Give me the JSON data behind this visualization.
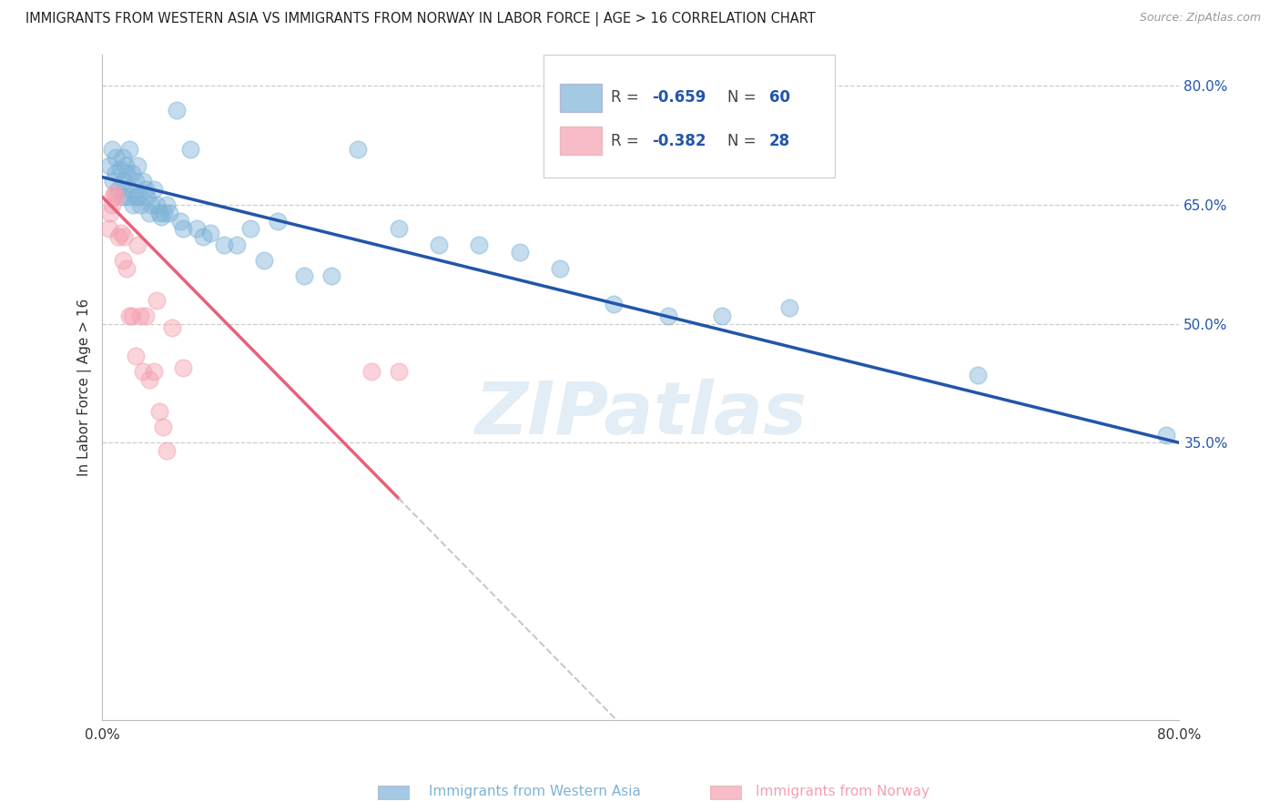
{
  "title": "IMMIGRANTS FROM WESTERN ASIA VS IMMIGRANTS FROM NORWAY IN LABOR FORCE | AGE > 16 CORRELATION CHART",
  "source": "Source: ZipAtlas.com",
  "xlabel_blue": "Immigrants from Western Asia",
  "xlabel_pink": "Immigrants from Norway",
  "ylabel": "In Labor Force | Age > 16",
  "xmin": 0.0,
  "xmax": 0.8,
  "ymin": 0.0,
  "ymax": 0.84,
  "right_yticks": [
    0.35,
    0.5,
    0.65,
    0.8
  ],
  "right_yticklabels": [
    "35.0%",
    "50.0%",
    "65.0%",
    "80.0%"
  ],
  "blue_color": "#7EB3D8",
  "pink_color": "#F4A0B0",
  "blue_line_color": "#2255AA",
  "pink_line_color": "#E8607A",
  "R_blue": -0.659,
  "N_blue": 60,
  "R_pink": -0.382,
  "N_pink": 28,
  "legend_N_color": "#3366CC",
  "watermark": "ZIPatlas",
  "blue_points_x": [
    0.005,
    0.007,
    0.008,
    0.01,
    0.01,
    0.012,
    0.013,
    0.015,
    0.015,
    0.016,
    0.017,
    0.018,
    0.019,
    0.02,
    0.02,
    0.022,
    0.023,
    0.025,
    0.025,
    0.026,
    0.027,
    0.028,
    0.03,
    0.032,
    0.033,
    0.035,
    0.036,
    0.038,
    0.04,
    0.042,
    0.044,
    0.046,
    0.048,
    0.05,
    0.055,
    0.058,
    0.06,
    0.065,
    0.07,
    0.075,
    0.08,
    0.09,
    0.1,
    0.11,
    0.12,
    0.13,
    0.15,
    0.17,
    0.19,
    0.22,
    0.25,
    0.28,
    0.31,
    0.34,
    0.38,
    0.42,
    0.46,
    0.51,
    0.65,
    0.79
  ],
  "blue_points_y": [
    0.7,
    0.72,
    0.68,
    0.71,
    0.69,
    0.67,
    0.695,
    0.71,
    0.66,
    0.68,
    0.7,
    0.69,
    0.66,
    0.72,
    0.67,
    0.69,
    0.65,
    0.68,
    0.66,
    0.7,
    0.66,
    0.65,
    0.68,
    0.67,
    0.66,
    0.64,
    0.65,
    0.67,
    0.65,
    0.64,
    0.635,
    0.64,
    0.65,
    0.64,
    0.77,
    0.63,
    0.62,
    0.72,
    0.62,
    0.61,
    0.615,
    0.6,
    0.6,
    0.62,
    0.58,
    0.63,
    0.56,
    0.56,
    0.72,
    0.62,
    0.6,
    0.6,
    0.59,
    0.57,
    0.525,
    0.51,
    0.51,
    0.52,
    0.435,
    0.36
  ],
  "pink_points_x": [
    0.005,
    0.006,
    0.007,
    0.008,
    0.009,
    0.01,
    0.012,
    0.014,
    0.015,
    0.016,
    0.018,
    0.02,
    0.022,
    0.025,
    0.026,
    0.028,
    0.03,
    0.032,
    0.035,
    0.038,
    0.04,
    0.042,
    0.045,
    0.048,
    0.052,
    0.06,
    0.2,
    0.22
  ],
  "pink_points_y": [
    0.62,
    0.64,
    0.65,
    0.66,
    0.665,
    0.66,
    0.61,
    0.615,
    0.58,
    0.61,
    0.57,
    0.51,
    0.51,
    0.46,
    0.6,
    0.51,
    0.44,
    0.51,
    0.43,
    0.44,
    0.53,
    0.39,
    0.37,
    0.34,
    0.495,
    0.445,
    0.44,
    0.44
  ]
}
